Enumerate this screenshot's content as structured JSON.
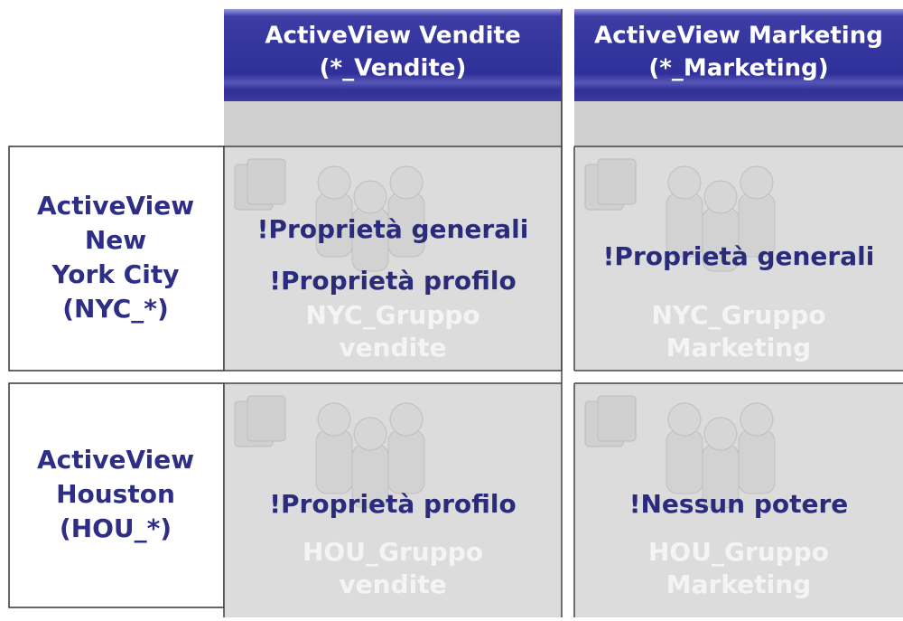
{
  "columns": [
    {
      "title": "ActiveView Vendite",
      "subtitle": "(*_Vendite)"
    },
    {
      "title": "ActiveView Marketing",
      "subtitle": "(*_Marketing)"
    }
  ],
  "rows": [
    {
      "label_lines": [
        "ActiveView",
        "New",
        "York City",
        "(NYC_*)"
      ],
      "cells": [
        {
          "permissions": [
            "!Proprietà generali",
            "!Proprietà profilo"
          ],
          "group_lines": [
            "NYC_Gruppo",
            "vendite"
          ]
        },
        {
          "permissions": [
            "!Proprietà generali"
          ],
          "group_lines": [
            "NYC_Gruppo",
            "Marketing"
          ]
        }
      ]
    },
    {
      "label_lines": [
        "ActiveView",
        "Houston",
        "(HOU_*)"
      ],
      "cells": [
        {
          "permissions": [
            "!Proprietà profilo"
          ],
          "group_lines": [
            "HOU_Gruppo",
            "vendite"
          ]
        },
        {
          "permissions": [
            "!Nessun potere"
          ],
          "group_lines": [
            "HOU_Gruppo",
            "Marketing"
          ]
        }
      ]
    }
  ]
}
